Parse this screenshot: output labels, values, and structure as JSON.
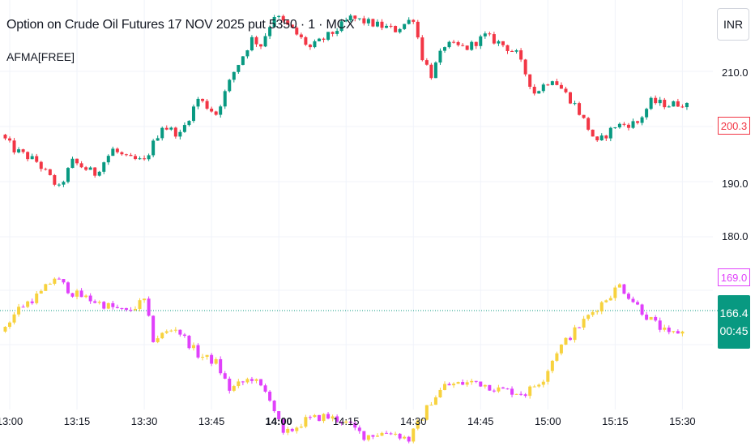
{
  "header": {
    "title": "Option on Crude Oil Futures 17 NOV 2025 put 5350 · 1 · MCX",
    "indicator": "AFMA[FREE]"
  },
  "currency": "INR",
  "y_axis": {
    "ticks": [
      "210.0",
      "190.0",
      "180.0"
    ]
  },
  "x_axis": {
    "ticks": [
      {
        "label": "13:00",
        "bold": false
      },
      {
        "label": "13:15",
        "bold": false
      },
      {
        "label": "13:30",
        "bold": false
      },
      {
        "label": "13:45",
        "bold": false
      },
      {
        "label": "14:00",
        "bold": true
      },
      {
        "label": "14:15",
        "bold": false
      },
      {
        "label": "14:30",
        "bold": false
      },
      {
        "label": "14:45",
        "bold": false
      },
      {
        "label": "15:00",
        "bold": false
      },
      {
        "label": "15:15",
        "bold": false
      },
      {
        "label": "15:30",
        "bold": false
      }
    ]
  },
  "price_tags": {
    "last_price": "200.3",
    "indicator_value": "169.0",
    "current_value": "166.4",
    "countdown": "00:45"
  },
  "colors": {
    "up": "#089981",
    "down": "#f23645",
    "ind_up": "#f7d23e",
    "ind_down": "#e040fb",
    "grid": "#f0f3fa",
    "dotted": "#089981"
  },
  "chart_data": [
    {
      "type": "candlestick",
      "name": "price",
      "x_start": "12:59",
      "x_end": "15:31",
      "ylim": [
        183.5,
        217.5
      ],
      "keypoints": [
        [
          "12:59",
          195.0
        ],
        [
          "13:02",
          192.5
        ],
        [
          "13:07",
          190.5
        ],
        [
          "13:12",
          186.0
        ],
        [
          "13:15",
          190.5
        ],
        [
          "13:20",
          188.5
        ],
        [
          "13:24",
          192.5
        ],
        [
          "13:27",
          191.0
        ],
        [
          "13:31",
          190.5
        ],
        [
          "13:35",
          196.5
        ],
        [
          "13:39",
          195.0
        ],
        [
          "13:43",
          201.0
        ],
        [
          "13:47",
          198.5
        ],
        [
          "13:51",
          205.5
        ],
        [
          "13:55",
          211.0
        ],
        [
          "13:57",
          210.0
        ],
        [
          "14:00",
          215.0
        ],
        [
          "14:04",
          212.5
        ],
        [
          "14:08",
          209.5
        ],
        [
          "14:13",
          212.0
        ],
        [
          "14:17",
          214.5
        ],
        [
          "14:22",
          213.5
        ],
        [
          "14:27",
          212.5
        ],
        [
          "14:31",
          214.5
        ],
        [
          "14:33",
          208.0
        ],
        [
          "14:35",
          205.0
        ],
        [
          "14:38",
          210.0
        ],
        [
          "14:43",
          209.5
        ],
        [
          "14:47",
          211.5
        ],
        [
          "14:51",
          210.0
        ],
        [
          "14:54",
          208.5
        ],
        [
          "14:58",
          202.0
        ],
        [
          "15:02",
          204.5
        ],
        [
          "15:07",
          200.0
        ],
        [
          "15:12",
          193.5
        ],
        [
          "15:16",
          196.5
        ],
        [
          "15:21",
          197.0
        ],
        [
          "15:24",
          200.5
        ],
        [
          "15:28",
          200.0
        ],
        [
          "15:31",
          200.3
        ]
      ]
    },
    {
      "type": "candlestick",
      "name": "AFMA[FREE]",
      "x_start": "12:59",
      "x_end": "15:30",
      "ylim": [
        161.0,
        181.5
      ],
      "keypoints": [
        [
          "12:59",
          169.0
        ],
        [
          "13:03",
          172.0
        ],
        [
          "13:08",
          174.0
        ],
        [
          "13:11",
          176.0
        ],
        [
          "13:15",
          174.0
        ],
        [
          "13:22",
          172.5
        ],
        [
          "13:27",
          171.5
        ],
        [
          "13:31",
          173.0
        ],
        [
          "13:33",
          168.0
        ],
        [
          "13:38",
          169.5
        ],
        [
          "13:43",
          166.0
        ],
        [
          "13:47",
          165.0
        ],
        [
          "13:50",
          161.5
        ],
        [
          "13:55",
          163.0
        ],
        [
          "13:59",
          160.5
        ],
        [
          "14:02",
          155.5
        ],
        [
          "14:07",
          157.5
        ],
        [
          "14:11",
          158.0
        ],
        [
          "14:15",
          157.5
        ],
        [
          "14:20",
          155.5
        ],
        [
          "14:26",
          156.0
        ],
        [
          "14:30",
          155.0
        ],
        [
          "14:35",
          160.0
        ],
        [
          "14:38",
          162.0
        ],
        [
          "14:45",
          162.5
        ],
        [
          "14:50",
          161.5
        ],
        [
          "14:56",
          161.0
        ],
        [
          "15:00",
          163.0
        ],
        [
          "15:03",
          166.5
        ],
        [
          "15:10",
          171.0
        ],
        [
          "15:17",
          175.0
        ],
        [
          "15:23",
          171.0
        ],
        [
          "15:28",
          168.5
        ],
        [
          "15:30",
          169.0
        ]
      ]
    }
  ]
}
